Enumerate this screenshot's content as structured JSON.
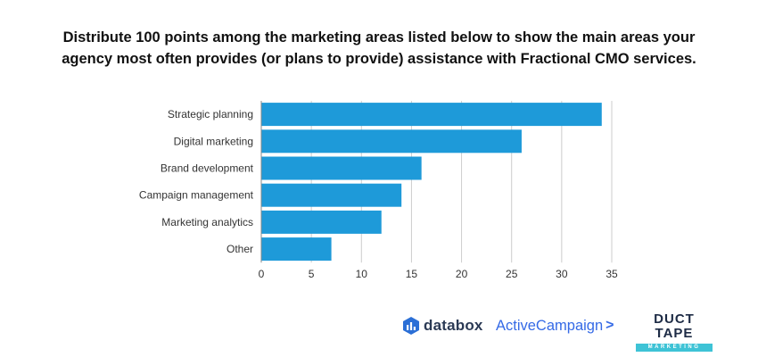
{
  "title": "Distribute 100 points among the marketing areas listed below to show the main areas your agency most often provides (or plans to provide) assistance with Fractional CMO services.",
  "chart_data": {
    "type": "bar",
    "orientation": "horizontal",
    "categories": [
      "Strategic planning",
      "Digital marketing",
      "Brand development",
      "Campaign management",
      "Marketing analytics",
      "Other"
    ],
    "values": [
      34,
      26,
      16,
      14,
      12,
      7
    ],
    "xlim": [
      0,
      35
    ],
    "xticks": [
      0,
      5,
      10,
      15,
      20,
      25,
      30,
      35
    ],
    "grid": "vertical",
    "legend": "none",
    "bar_color": "#1e9ad9"
  },
  "logos": {
    "databox": "databox",
    "activecampaign": "ActiveCampaign",
    "activecampaign_chevron": ">",
    "ducttape_main": "DUCT TAPE",
    "ducttape_sub": "MARKETING"
  },
  "colors": {
    "bar": "#1e9ad9",
    "grid": "#cccccc",
    "axis_text": "#333333",
    "databox": "#2b3a55",
    "activecampaign": "#356ae6",
    "ducttape": "#1d2b45",
    "ducttape_band": "#3ec3d6"
  },
  "icons": {
    "databox_mark": "databox-bar-icon"
  }
}
